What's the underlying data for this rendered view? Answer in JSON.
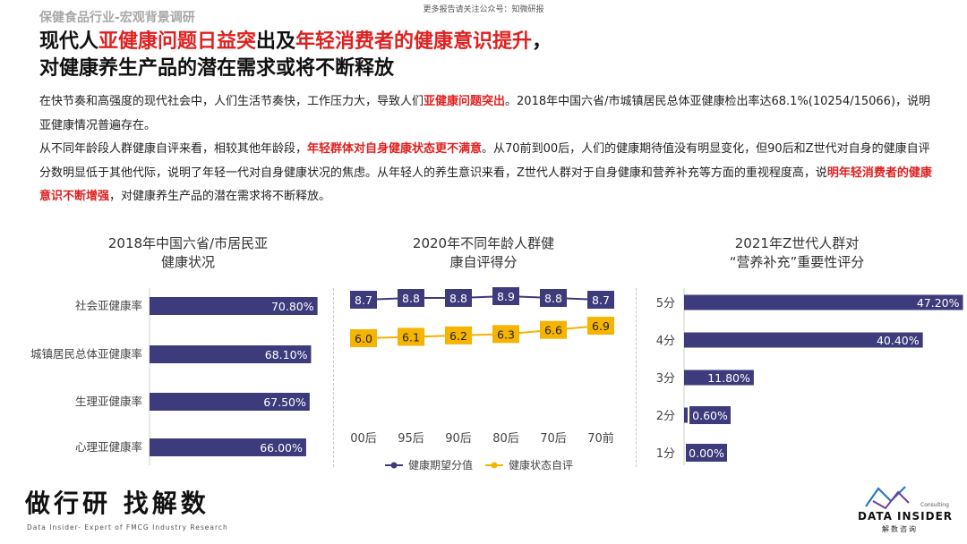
{
  "header": {
    "top_note": "更多报告请关注公众号：知微研报",
    "category": "保健食品行业-宏观背景调研"
  },
  "title": {
    "l1_a": "现代人",
    "l1_b": "亚健康问题日益突",
    "l1_c": "出及",
    "l1_d": "年轻消费者的健康意识提升",
    "l1_e": "，",
    "l2": "对健康养生产品的潜在需求或将不断释放"
  },
  "body": {
    "p1_a": "在快节奏和高强度的现代社会中，人们生活节奏快，工作压力大，导致人们",
    "p1_b": "亚健康问题突出",
    "p1_c": "。2018年中国六省/市城镇居民总体亚健康检出率达68.1%(10254/15066)，说明亚健康情况普遍存在。",
    "p2_a": "从不同年龄段人群健康自评来看，相较其他年龄段，",
    "p2_b": "年轻群体对自身健康状态更不满意",
    "p2_c": "。从70前到00后，人们的健康期待值没有明显变化，但90后和Z世代对自身的健康自评分数明显低于其他代际，说明了年轻一代对自身健康状况的焦虑。从年轻人的养生意识来看，Z世代人群对于自身健康和营养补充等方面的重视程度高，说",
    "p2_d": "明年轻消费者的健康意识不断增强",
    "p2_e": "，对健康养生产品的潜在需求将不断释放。"
  },
  "chart_data": [
    {
      "type": "bar",
      "orientation": "horizontal",
      "title_lines": [
        "2018年中国六省/市居民亚",
        "健康状况"
      ],
      "categories": [
        "社会亚健康率",
        "城镇居民总体亚健康率",
        "生理亚健康率",
        "心理亚健康率"
      ],
      "values": [
        70.8,
        68.1,
        67.5,
        66.0
      ],
      "value_labels": [
        "70.80%",
        "68.10%",
        "67.50%",
        "66.00%"
      ],
      "color": "#3d3b7c"
    },
    {
      "type": "line",
      "title_lines": [
        "2020年不同年龄人群健",
        "康自评得分"
      ],
      "categories": [
        "00后",
        "95后",
        "90后",
        "80后",
        "70后",
        "70前"
      ],
      "series": [
        {
          "name": "健康期望分值",
          "values": [
            8.7,
            8.8,
            8.8,
            8.9,
            8.8,
            8.7
          ],
          "labels": [
            "8.7",
            "8.8",
            "8.8",
            "8.9",
            "8.8",
            "8.7"
          ],
          "color": "#3d3b7c"
        },
        {
          "name": "健康状态自评",
          "values": [
            6.0,
            6.1,
            6.2,
            6.3,
            6.6,
            6.9
          ],
          "labels": [
            "6.0",
            "6.1",
            "6.2",
            "6.3",
            "6.6",
            "6.9"
          ],
          "color": "#f5b400"
        }
      ],
      "legend": "bottom"
    },
    {
      "type": "bar",
      "orientation": "horizontal",
      "title_lines": [
        "2021年Z世代人群对",
        "“营养补充”重要性评分"
      ],
      "categories": [
        "5分",
        "4分",
        "3分",
        "2分",
        "1分"
      ],
      "values": [
        47.2,
        40.4,
        11.8,
        0.6,
        0.0
      ],
      "value_labels": [
        "47.20%",
        "40.40%",
        "11.80%",
        "0.60%",
        "0.00%"
      ],
      "color": "#3d3b7c"
    }
  ],
  "footer": {
    "brand_left": "做行研 找解数",
    "brand_left_sub": "Data Insider- Expert of FMCG Industry Research",
    "logo_consult": "Consulting",
    "logo_text": "DATA INSIDER",
    "logo_sub": "解数咨询"
  }
}
